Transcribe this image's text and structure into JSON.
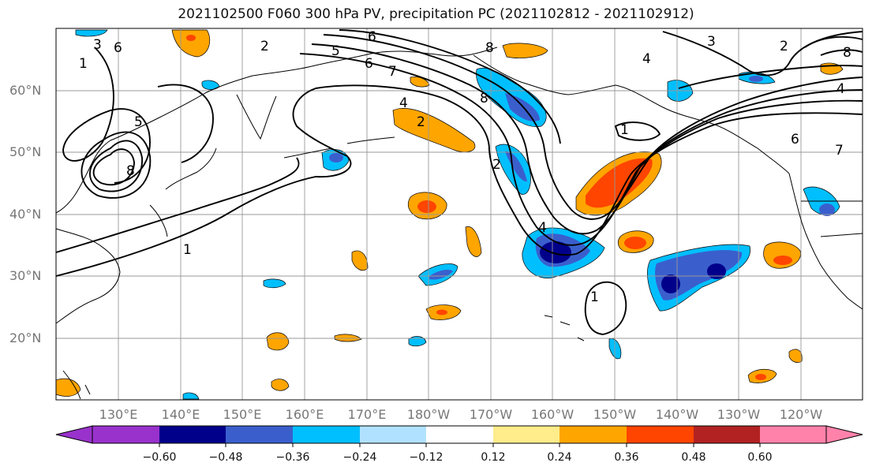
{
  "title": "2021102500 F060 300 hPa PV, precipitation PC (2021102812 - 2021102912)",
  "lat_labels": [
    "60°N",
    "50°N",
    "40°N",
    "30°N",
    "20°N"
  ],
  "lon_labels": [
    "130°E",
    "140°E",
    "150°E",
    "160°E",
    "170°E",
    "180°W",
    "170°W",
    "160°W",
    "150°W",
    "140°W",
    "130°W",
    "120°W"
  ],
  "colorbar": {
    "ticks": [
      "−0.60",
      "−0.48",
      "−0.36",
      "−0.24",
      "−0.12",
      "0.12",
      "0.24",
      "0.36",
      "0.48",
      "0.60"
    ],
    "colors": [
      "#9932cc",
      "#00008b",
      "#3a5fcd",
      "#00bfff",
      "#b0e2ff",
      "#ffffff",
      "#ffec8b",
      "#ffa500",
      "#ff4500",
      "#b22222",
      "#ff82ab"
    ]
  },
  "pv_contour_labels": [
    "1",
    "2",
    "3",
    "4",
    "5",
    "6",
    "7",
    "8"
  ]
}
